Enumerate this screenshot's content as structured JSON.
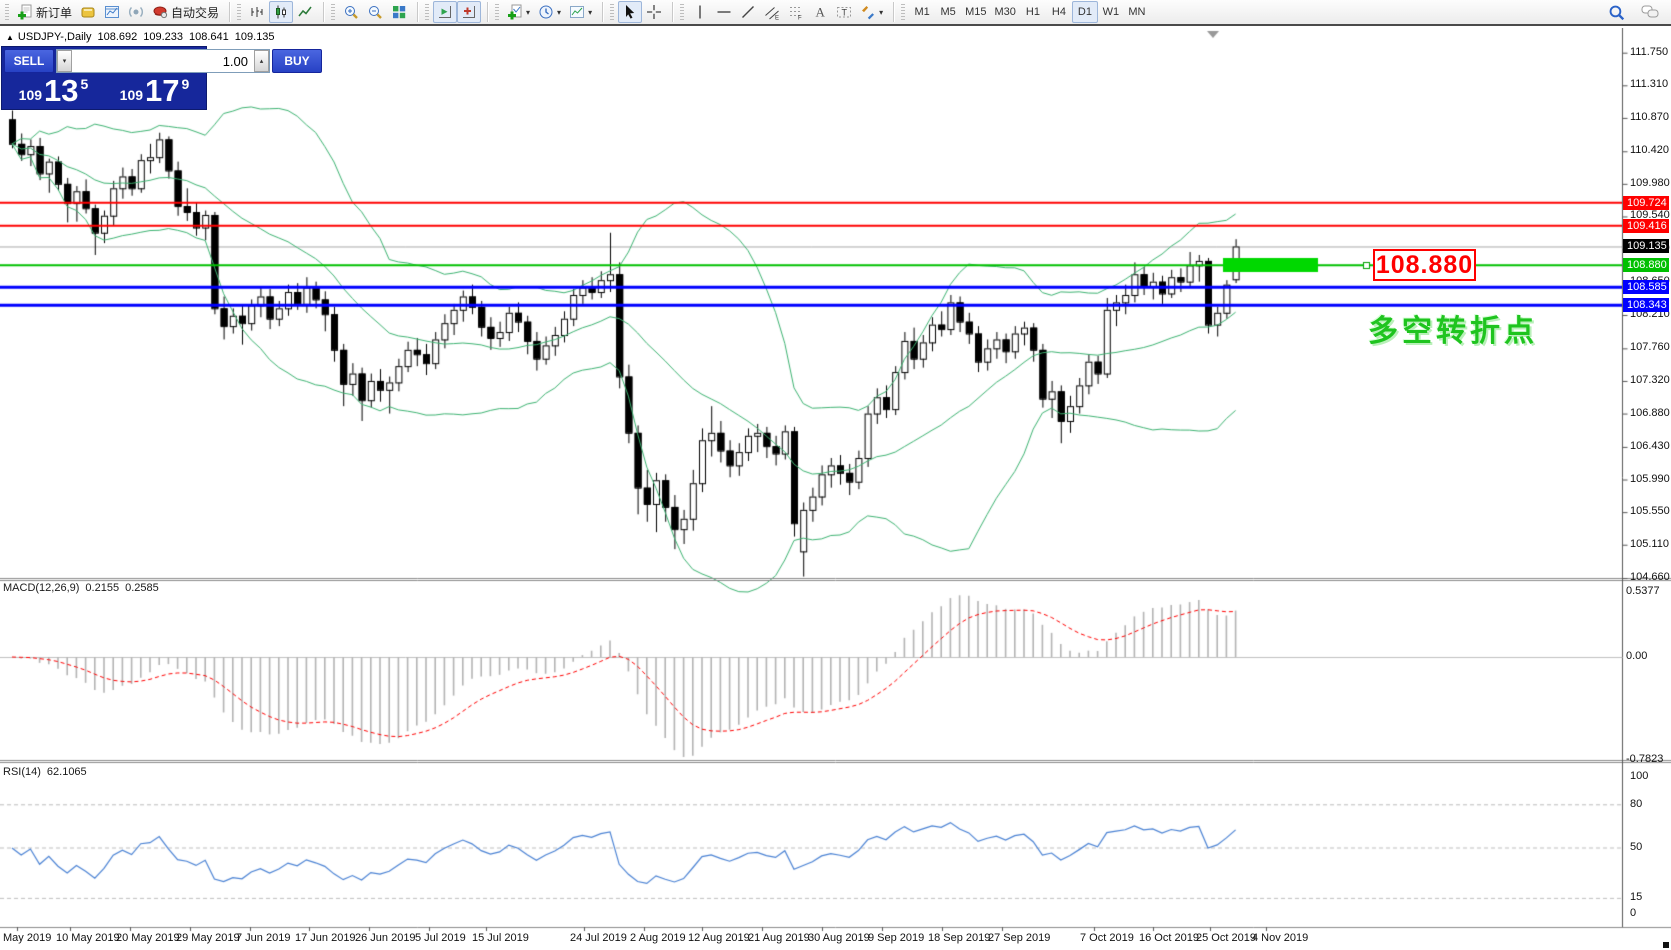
{
  "icons": {
    "dropdown": "▾",
    "spin_down": "▾",
    "spin_up": "▴",
    "collapse": "▲"
  },
  "toolbar": {
    "groups": [
      {
        "items": [
          {
            "name": "new-order",
            "label": "新订单"
          },
          {
            "name": "editor"
          },
          {
            "name": "chart-window"
          },
          {
            "name": "signals"
          },
          {
            "name": "autotrading",
            "label": "自动交易"
          }
        ]
      },
      {
        "items": [
          {
            "name": "bar-chart"
          },
          {
            "name": "candlestick",
            "active": true
          },
          {
            "name": "line-chart"
          }
        ]
      },
      {
        "items": [
          {
            "name": "zoom-in"
          },
          {
            "name": "zoom-out"
          },
          {
            "name": "tile-windows"
          }
        ]
      },
      {
        "items": [
          {
            "name": "auto-scroll",
            "active": true
          },
          {
            "name": "chart-shift",
            "active": true
          }
        ]
      },
      {
        "items": [
          {
            "name": "indicators",
            "dropdown": true
          },
          {
            "name": "periods",
            "dropdown": true
          },
          {
            "name": "templates",
            "dropdown": true
          }
        ]
      },
      {
        "items": [
          {
            "name": "cursor",
            "active": true
          },
          {
            "name": "crosshair"
          }
        ]
      },
      {
        "items": [
          {
            "name": "vertical-line"
          },
          {
            "name": "horizontal-line"
          },
          {
            "name": "trendline"
          },
          {
            "name": "equidistant-channel"
          },
          {
            "name": "fibonacci"
          },
          {
            "name": "text"
          },
          {
            "name": "text-label"
          },
          {
            "name": "arrows",
            "dropdown": true
          }
        ]
      },
      {
        "items": [
          {
            "name": "tf-m1",
            "label": "M1"
          },
          {
            "name": "tf-m5",
            "label": "M5"
          },
          {
            "name": "tf-m15",
            "label": "M15"
          },
          {
            "name": "tf-m30",
            "label": "M30"
          },
          {
            "name": "tf-h1",
            "label": "H1"
          },
          {
            "name": "tf-h4",
            "label": "H4"
          },
          {
            "name": "tf-d1",
            "label": "D1",
            "active": true
          },
          {
            "name": "tf-w1",
            "label": "W1"
          },
          {
            "name": "tf-mn",
            "label": "MN"
          }
        ],
        "timeframes": true
      }
    ],
    "right": [
      {
        "name": "search"
      },
      {
        "name": "chat"
      }
    ]
  },
  "title": {
    "symbol_period": "USDJPY-,Daily",
    "open": "108.692",
    "high": "109.233",
    "low": "108.641",
    "close": "109.135"
  },
  "trade_panel": {
    "sell_label": "SELL",
    "buy_label": "BUY",
    "volume": "1.00",
    "sell_price": {
      "big_figure": "109",
      "pips": "13",
      "point": "5"
    },
    "buy_price": {
      "big_figure": "109",
      "pips": "17",
      "point": "9"
    }
  },
  "indicator_labels": {
    "macd": {
      "name": "MACD(12,26,9)",
      "value": "0.2155",
      "signal": "0.2585"
    },
    "rsi": {
      "name": "RSI(14)",
      "value": "62.1065"
    }
  },
  "annotations": {
    "callout_text": "108.880",
    "callout_color": "#ff0000",
    "note_text": "多空转折点",
    "note_color": "#1fc41f"
  },
  "price_scale": {
    "ticks": [
      "111.750",
      "111.310",
      "110.870",
      "110.420",
      "109.980",
      "109.540",
      "109.100",
      "108.650",
      "108.210",
      "107.760",
      "107.320",
      "106.880",
      "106.430",
      "105.990",
      "105.550",
      "105.110",
      "104.660"
    ]
  },
  "macd_scale": [
    "0.5377",
    "0.00",
    "-0.7823"
  ],
  "rsi_scale": {
    "labels": [
      "100",
      "80",
      "50",
      "15",
      "0"
    ],
    "levels": [
      80,
      50,
      15
    ]
  },
  "price_tags": [
    {
      "text": "109.724",
      "bg": "#ff0000",
      "price": 109.724
    },
    {
      "text": "109.416",
      "bg": "#ff0000",
      "price": 109.416
    },
    {
      "text": "109.135",
      "bg": "#000000",
      "price": 109.135
    },
    {
      "text": "108.880",
      "bg": "#00c000",
      "price": 108.88
    },
    {
      "text": "108.585",
      "bg": "#0000ff",
      "price": 108.585
    },
    {
      "text": "108.343",
      "bg": "#0000ff",
      "price": 108.343
    }
  ],
  "chart_data": {
    "type": "candlestick",
    "symbol": "USDJPY-",
    "period": "Daily",
    "y_range": [
      104.66,
      111.75
    ],
    "current_price": 109.135,
    "candle_colors": {
      "up": "#ffffff",
      "down": "#000000",
      "outline": "#000000"
    },
    "hlines": [
      {
        "price": 109.724,
        "color": "#ff0000",
        "width": 2
      },
      {
        "price": 109.416,
        "color": "#ff0000",
        "width": 2
      },
      {
        "price": 108.88,
        "color": "#00c000",
        "width": 2
      },
      {
        "price": 108.585,
        "color": "#0000ff",
        "width": 3
      },
      {
        "price": 108.343,
        "color": "#0000ff",
        "width": 3
      }
    ],
    "highlight_zone": {
      "x": 1223,
      "y": 258,
      "w": 95,
      "h": 14,
      "color": "#00d800"
    },
    "overlays": {
      "bollinger": {
        "period": 20,
        "deviation": 2,
        "color": "#3cb371"
      }
    },
    "macd": {
      "fast": 12,
      "slow": 26,
      "signal": 9,
      "histogram_color": "#b4b4b4",
      "signal_color": "#ff0000"
    },
    "rsi": {
      "period": 14,
      "color": "#4a82d4",
      "levels_color": "#bdbdbd"
    },
    "x_labels": [
      [
        "May 2019",
        3
      ],
      [
        "10 May 2019",
        56
      ],
      [
        "20 May 2019",
        116
      ],
      [
        "29 May 2019",
        176
      ],
      [
        "7 Jun 2019",
        236
      ],
      [
        "17 Jun 2019",
        295
      ],
      [
        "26 Jun 2019",
        355
      ],
      [
        "5 Jul 2019",
        415
      ],
      [
        "15 Jul 2019",
        472
      ],
      [
        "24 Jul 2019",
        570
      ],
      [
        "2 Aug 2019",
        630
      ],
      [
        "12 Aug 2019",
        688
      ],
      [
        "21 Aug 2019",
        748
      ],
      [
        "30 Aug 2019",
        808
      ],
      [
        "9 Sep 2019",
        868
      ],
      [
        "18 Sep 2019",
        928
      ],
      [
        "27 Sep 2019",
        988
      ],
      [
        "7 Oct 2019",
        1080
      ],
      [
        "16 Oct 2019",
        1139
      ],
      [
        "25 Oct 2019",
        1196
      ],
      [
        "4 Nov 2019",
        1252
      ]
    ],
    "candles": [
      [
        110.85,
        110.97,
        110.46,
        110.52
      ],
      [
        110.52,
        110.66,
        110.29,
        110.38
      ],
      [
        110.38,
        110.58,
        110.22,
        110.49
      ],
      [
        110.49,
        110.6,
        110.03,
        110.12
      ],
      [
        110.12,
        110.32,
        109.86,
        110.28
      ],
      [
        110.28,
        110.35,
        109.89,
        109.98
      ],
      [
        109.98,
        110.06,
        109.46,
        109.72
      ],
      [
        109.72,
        109.95,
        109.47,
        109.88
      ],
      [
        109.88,
        110.04,
        109.58,
        109.65
      ],
      [
        109.65,
        109.7,
        109.02,
        109.32
      ],
      [
        109.32,
        109.62,
        109.18,
        109.55
      ],
      [
        109.55,
        110.02,
        109.42,
        109.92
      ],
      [
        109.92,
        110.2,
        109.78,
        110.08
      ],
      [
        110.08,
        110.18,
        109.82,
        109.92
      ],
      [
        109.92,
        110.38,
        109.86,
        110.3
      ],
      [
        110.3,
        110.52,
        110.12,
        110.34
      ],
      [
        110.34,
        110.67,
        110.26,
        110.58
      ],
      [
        110.58,
        110.62,
        110.05,
        110.16
      ],
      [
        110.16,
        110.28,
        109.55,
        109.68
      ],
      [
        109.68,
        109.92,
        109.48,
        109.6
      ],
      [
        109.6,
        109.73,
        109.28,
        109.39
      ],
      [
        109.39,
        109.62,
        109.22,
        109.56
      ],
      [
        109.56,
        109.6,
        108.22,
        108.3
      ],
      [
        108.3,
        108.46,
        107.88,
        108.06
      ],
      [
        108.06,
        108.3,
        107.96,
        108.2
      ],
      [
        108.2,
        108.35,
        107.81,
        108.1
      ],
      [
        108.1,
        108.42,
        108.0,
        108.34
      ],
      [
        108.34,
        108.6,
        108.18,
        108.46
      ],
      [
        108.46,
        108.56,
        108.02,
        108.16
      ],
      [
        108.16,
        108.4,
        108.06,
        108.3
      ],
      [
        108.3,
        108.62,
        108.2,
        108.52
      ],
      [
        108.52,
        108.64,
        108.28,
        108.36
      ],
      [
        108.36,
        108.72,
        108.24,
        108.58
      ],
      [
        108.58,
        108.66,
        108.3,
        108.42
      ],
      [
        108.42,
        108.53,
        107.99,
        108.22
      ],
      [
        108.22,
        108.32,
        107.58,
        107.74
      ],
      [
        107.74,
        107.82,
        106.98,
        107.28
      ],
      [
        107.28,
        107.56,
        107.12,
        107.42
      ],
      [
        107.42,
        107.5,
        106.78,
        107.06
      ],
      [
        107.06,
        107.42,
        106.96,
        107.32
      ],
      [
        107.32,
        107.48,
        107.04,
        107.2
      ],
      [
        107.2,
        107.38,
        106.88,
        107.3
      ],
      [
        107.3,
        107.62,
        107.18,
        107.52
      ],
      [
        107.52,
        107.85,
        107.44,
        107.74
      ],
      [
        107.74,
        107.9,
        107.52,
        107.68
      ],
      [
        107.68,
        107.82,
        107.4,
        107.56
      ],
      [
        107.56,
        107.98,
        107.48,
        107.88
      ],
      [
        107.88,
        108.22,
        107.76,
        108.1
      ],
      [
        108.1,
        108.36,
        107.94,
        108.28
      ],
      [
        108.28,
        108.54,
        108.12,
        108.46
      ],
      [
        108.46,
        108.62,
        108.22,
        108.32
      ],
      [
        108.32,
        108.4,
        107.92,
        108.05
      ],
      [
        108.05,
        108.18,
        107.74,
        107.9
      ],
      [
        107.9,
        108.12,
        107.78,
        107.98
      ],
      [
        107.98,
        108.32,
        107.86,
        108.24
      ],
      [
        108.24,
        108.38,
        107.98,
        108.12
      ],
      [
        108.12,
        108.2,
        107.68,
        107.86
      ],
      [
        107.86,
        107.98,
        107.46,
        107.62
      ],
      [
        107.62,
        107.92,
        107.54,
        107.8
      ],
      [
        107.8,
        108.05,
        107.66,
        107.94
      ],
      [
        107.94,
        108.26,
        107.84,
        108.16
      ],
      [
        108.16,
        108.56,
        108.06,
        108.48
      ],
      [
        108.48,
        108.68,
        108.36,
        108.58
      ],
      [
        108.58,
        108.72,
        108.42,
        108.52
      ],
      [
        108.52,
        108.8,
        108.44,
        108.68
      ],
      [
        108.68,
        109.32,
        108.52,
        108.76
      ],
      [
        108.76,
        108.92,
        107.22,
        107.38
      ],
      [
        107.38,
        107.54,
        106.48,
        106.62
      ],
      [
        106.62,
        106.72,
        105.52,
        105.88
      ],
      [
        105.88,
        106.12,
        105.42,
        105.66
      ],
      [
        105.66,
        106.08,
        105.28,
        105.98
      ],
      [
        105.98,
        106.06,
        105.42,
        105.62
      ],
      [
        105.62,
        105.78,
        105.05,
        105.32
      ],
      [
        105.32,
        105.58,
        105.12,
        105.46
      ],
      [
        105.46,
        106.12,
        105.3,
        105.94
      ],
      [
        105.94,
        106.68,
        105.82,
        106.52
      ],
      [
        106.52,
        106.98,
        106.3,
        106.62
      ],
      [
        106.62,
        106.78,
        106.22,
        106.38
      ],
      [
        106.38,
        106.52,
        106.02,
        106.18
      ],
      [
        106.18,
        106.48,
        106.04,
        106.36
      ],
      [
        106.36,
        106.68,
        106.24,
        106.58
      ],
      [
        106.58,
        106.74,
        106.36,
        106.62
      ],
      [
        106.62,
        106.7,
        106.28,
        106.44
      ],
      [
        106.44,
        106.58,
        106.18,
        106.34
      ],
      [
        106.34,
        106.72,
        106.26,
        106.64
      ],
      [
        106.64,
        106.7,
        105.22,
        105.4
      ],
      [
        105.02,
        105.68,
        104.68,
        105.58
      ],
      [
        105.58,
        105.88,
        105.42,
        105.76
      ],
      [
        105.76,
        106.18,
        105.64,
        106.06
      ],
      [
        106.06,
        106.28,
        105.88,
        106.18
      ],
      [
        106.18,
        106.32,
        105.92,
        106.08
      ],
      [
        106.08,
        106.2,
        105.78,
        105.96
      ],
      [
        105.96,
        106.38,
        105.86,
        106.28
      ],
      [
        106.28,
        106.98,
        106.16,
        106.88
      ],
      [
        106.88,
        107.22,
        106.74,
        107.1
      ],
      [
        107.1,
        107.26,
        106.82,
        106.94
      ],
      [
        106.94,
        107.52,
        106.86,
        107.44
      ],
      [
        107.44,
        107.98,
        107.34,
        107.86
      ],
      [
        107.86,
        108.04,
        107.48,
        107.62
      ],
      [
        107.62,
        107.94,
        107.5,
        107.84
      ],
      [
        107.84,
        108.18,
        107.72,
        108.08
      ],
      [
        108.08,
        108.26,
        107.92,
        108.02
      ],
      [
        108.02,
        108.48,
        107.94,
        108.38
      ],
      [
        108.38,
        108.46,
        107.98,
        108.12
      ],
      [
        108.12,
        108.24,
        107.82,
        107.96
      ],
      [
        107.96,
        108.06,
        107.44,
        107.58
      ],
      [
        107.58,
        107.88,
        107.46,
        107.76
      ],
      [
        107.76,
        107.98,
        107.62,
        107.88
      ],
      [
        107.88,
        107.96,
        107.56,
        107.72
      ],
      [
        107.72,
        108.06,
        107.62,
        107.96
      ],
      [
        107.96,
        108.12,
        107.8,
        108.04
      ],
      [
        108.04,
        108.1,
        107.58,
        107.74
      ],
      [
        107.74,
        107.82,
        106.96,
        107.08
      ],
      [
        107.08,
        107.32,
        106.82,
        107.18
      ],
      [
        107.18,
        107.26,
        106.48,
        106.78
      ],
      [
        106.78,
        107.12,
        106.62,
        106.98
      ],
      [
        106.98,
        107.36,
        106.88,
        107.26
      ],
      [
        107.26,
        107.68,
        107.14,
        107.58
      ],
      [
        107.58,
        107.66,
        107.28,
        107.42
      ],
      [
        107.42,
        108.44,
        107.36,
        108.28
      ],
      [
        108.28,
        108.48,
        108.06,
        108.38
      ],
      [
        108.38,
        108.62,
        108.22,
        108.48
      ],
      [
        108.48,
        108.92,
        108.38,
        108.76
      ],
      [
        108.76,
        108.86,
        108.48,
        108.6
      ],
      [
        108.6,
        108.78,
        108.42,
        108.66
      ],
      [
        108.66,
        108.74,
        108.36,
        108.5
      ],
      [
        108.5,
        108.82,
        108.44,
        108.72
      ],
      [
        108.72,
        108.84,
        108.52,
        108.66
      ],
      [
        108.66,
        109.06,
        108.58,
        108.88
      ],
      [
        108.88,
        109.02,
        108.66,
        108.94
      ],
      [
        108.94,
        108.98,
        107.96,
        108.08
      ],
      [
        108.08,
        108.32,
        107.92,
        108.24
      ],
      [
        108.24,
        108.68,
        108.16,
        108.62
      ],
      [
        108.692,
        109.233,
        108.641,
        109.135
      ]
    ]
  }
}
